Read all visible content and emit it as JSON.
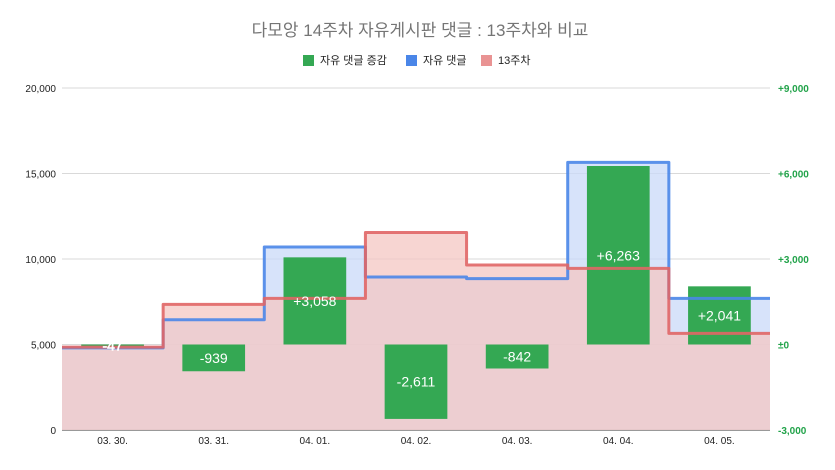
{
  "chart_data": {
    "type": "bar",
    "title": "다모앙 14주차 자유게시판 댓글 : 13주차와 비교",
    "legend_position": "top",
    "categories": [
      "03. 30.",
      "03. 31.",
      "04. 01.",
      "04. 02.",
      "04. 03.",
      "04. 04.",
      "04. 05."
    ],
    "left_axis": {
      "ylim": [
        0,
        20000
      ],
      "ticks": [
        0,
        5000,
        10000,
        15000,
        20000
      ],
      "tick_labels": [
        "0",
        "5,000",
        "10,000",
        "15,000",
        "20,000"
      ]
    },
    "right_axis": {
      "ylim": [
        -3000,
        9000
      ],
      "ticks": [
        -3000,
        0,
        3000,
        6000,
        9000
      ],
      "tick_labels": [
        "-3,000",
        "±0",
        "+3,000",
        "+6,000",
        "+9,000"
      ],
      "color": "#22a34a"
    },
    "series": [
      {
        "name": "자유 댓글 증감",
        "kind": "bar",
        "axis": "right",
        "color": "#34a853",
        "values": [
          -47,
          -939,
          3058,
          -2611,
          -842,
          6263,
          2041
        ],
        "labels": [
          "-47",
          "-939",
          "+3,058",
          "-2,611",
          "-842",
          "+6,263",
          "+2,041"
        ]
      },
      {
        "name": "자유 댓글",
        "kind": "stepped-area",
        "axis": "left",
        "color": "#4a86e8",
        "fill": "#c9daf8",
        "values": [
          4800,
          6450,
          10700,
          8950,
          8850,
          15650,
          7700
        ]
      },
      {
        "name": "13주차",
        "kind": "stepped-area",
        "axis": "left",
        "color": "#e06666",
        "fill": "#f4c7c3",
        "values": [
          4850,
          7350,
          7700,
          11550,
          9650,
          9450,
          5650
        ]
      }
    ],
    "grid": true
  }
}
